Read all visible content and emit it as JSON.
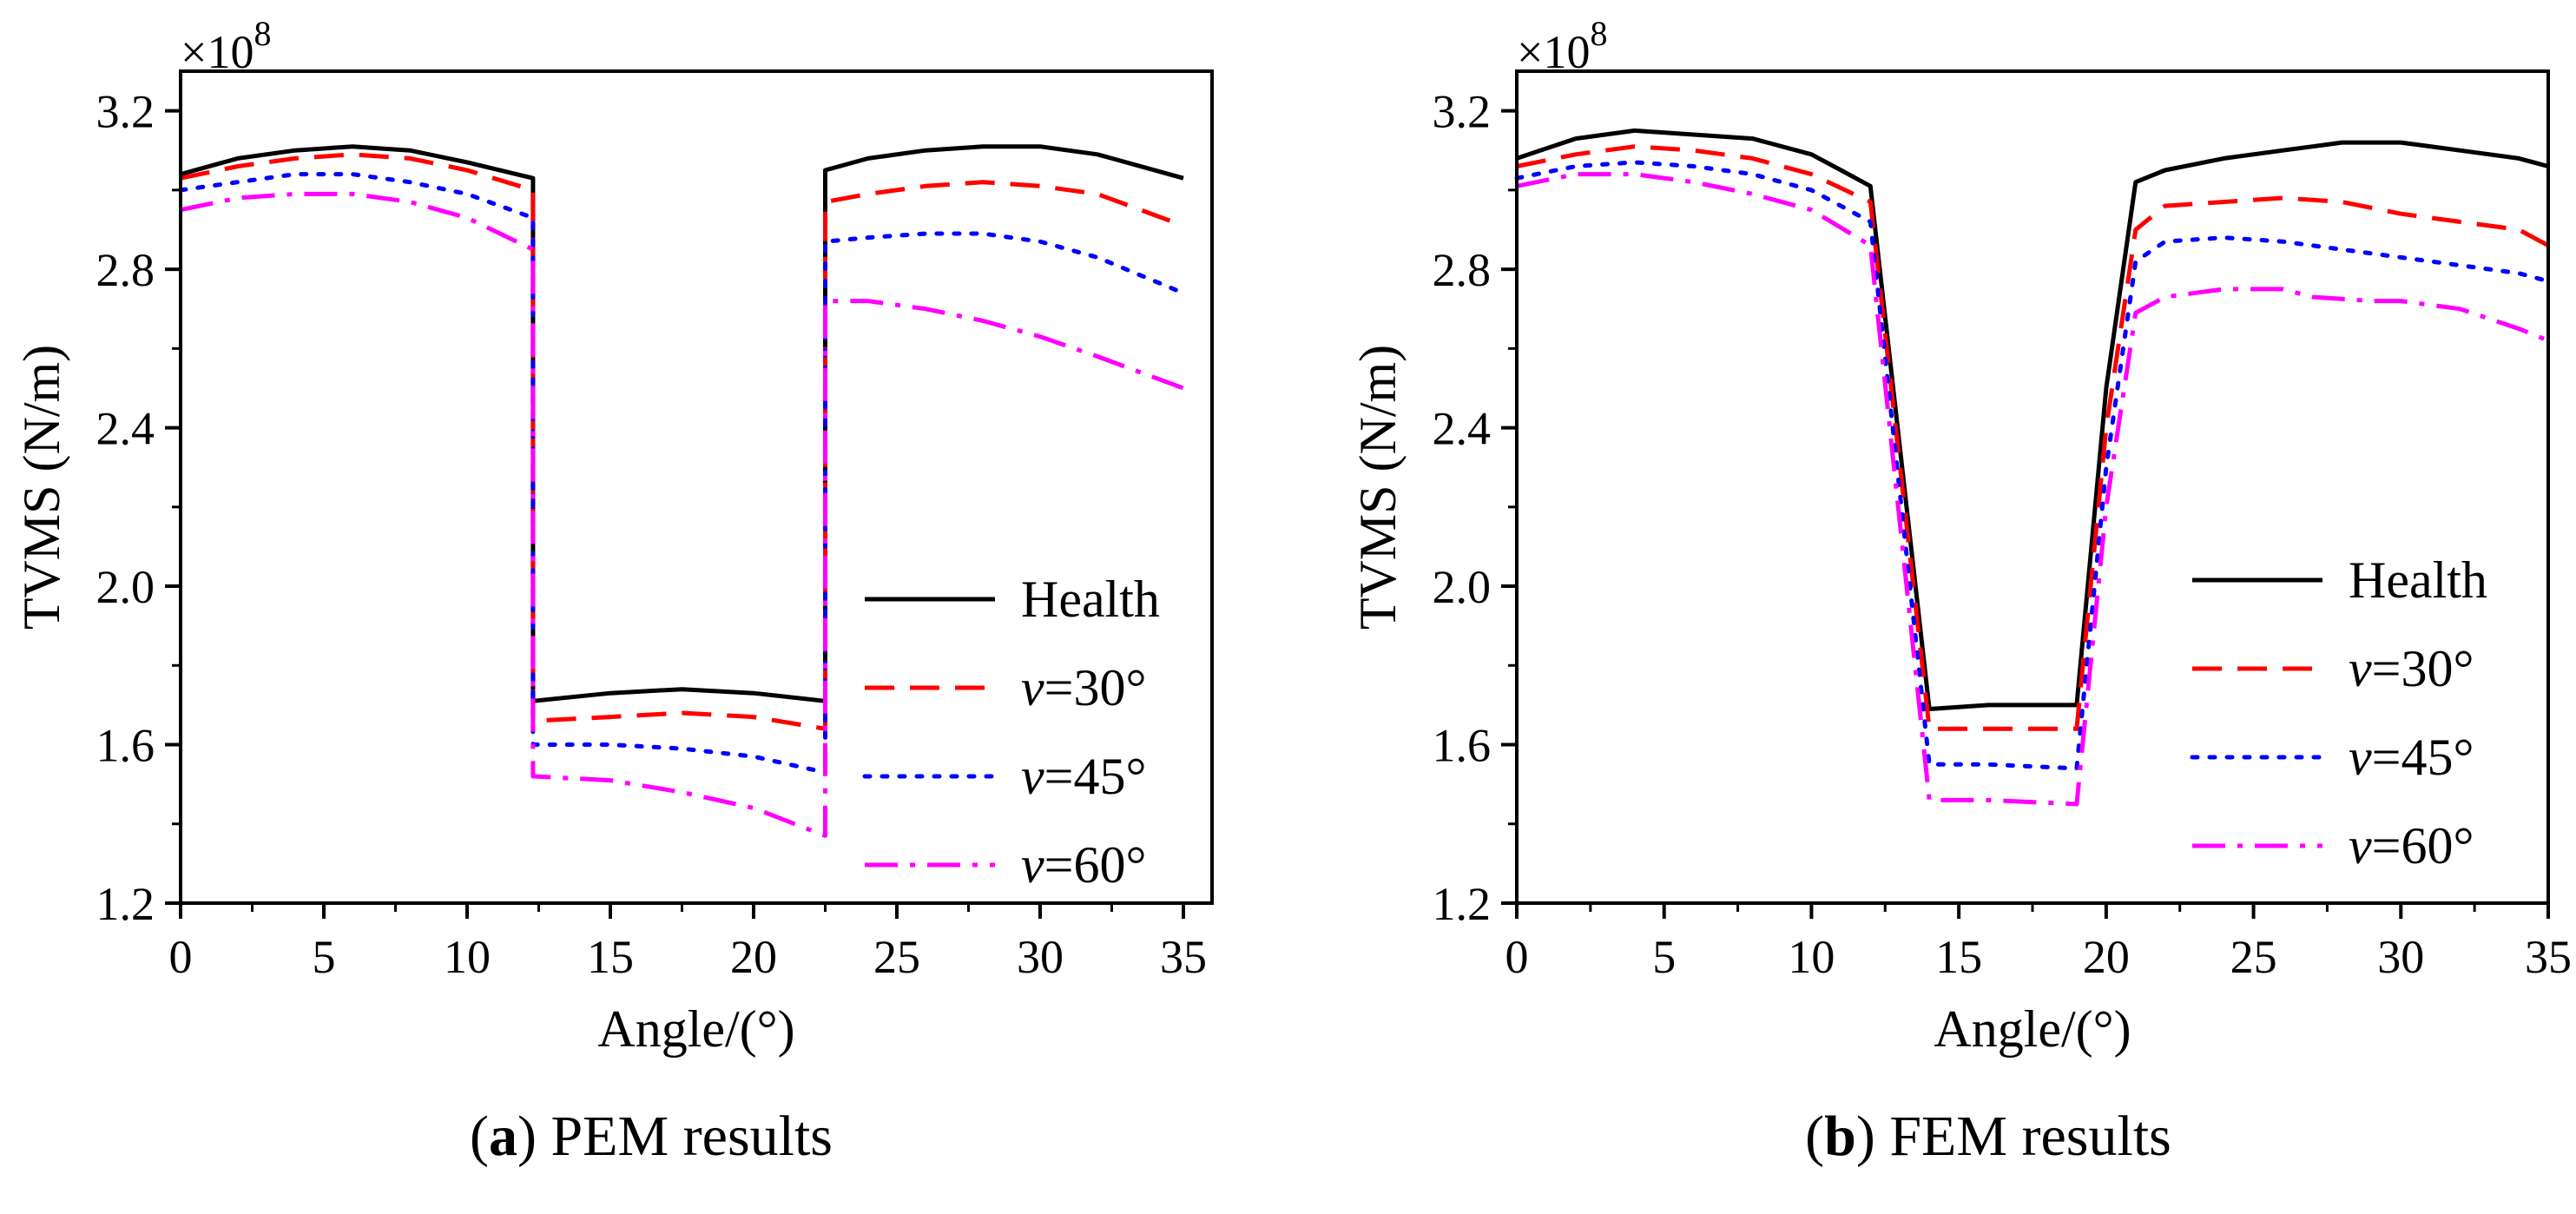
{
  "chart_data": [
    {
      "type": "line",
      "id": "a",
      "caption_letter": "a",
      "caption_text": "PEM results",
      "xlabel": "Angle/(°)",
      "ylabel": "TVMS (N/m)",
      "y_multiplier": "×10",
      "y_exponent": "8",
      "xlim": [
        0,
        36
      ],
      "ylim": [
        1.2,
        3.3
      ],
      "xticks": [
        0,
        5,
        10,
        15,
        20,
        25,
        30,
        35
      ],
      "xtick_labels": [
        "0",
        "5",
        "10",
        "15",
        "20",
        "25",
        "30",
        "35"
      ],
      "yticks": [
        1.2,
        1.6,
        2.0,
        2.4,
        2.8,
        3.2
      ],
      "ytick_labels": [
        "1.2",
        "1.6",
        "2.0",
        "2.4",
        "2.8",
        "3.2"
      ],
      "legend_position": "lower-right",
      "series": [
        {
          "name": "Health",
          "label_prefix": "",
          "label_value": "Health",
          "color": "#000000",
          "dash": "solid",
          "points": [
            [
              0,
              3.04
            ],
            [
              2,
              3.08
            ],
            [
              4,
              3.1
            ],
            [
              6,
              3.11
            ],
            [
              8,
              3.1
            ],
            [
              10,
              3.07
            ],
            [
              12.3,
              3.03
            ],
            [
              12.3,
              1.71
            ],
            [
              15,
              1.73
            ],
            [
              17.5,
              1.74
            ],
            [
              20,
              1.73
            ],
            [
              22.5,
              1.71
            ],
            [
              22.5,
              3.05
            ],
            [
              24,
              3.08
            ],
            [
              26,
              3.1
            ],
            [
              28,
              3.11
            ],
            [
              30,
              3.11
            ],
            [
              32,
              3.09
            ],
            [
              35,
              3.03
            ]
          ]
        },
        {
          "name": "v=30°",
          "label_prefix": "v",
          "label_value": "=30°",
          "color": "#ff0000",
          "dash": "dashed",
          "points": [
            [
              0,
              3.03
            ],
            [
              2,
              3.06
            ],
            [
              4,
              3.08
            ],
            [
              6,
              3.09
            ],
            [
              8,
              3.08
            ],
            [
              10,
              3.05
            ],
            [
              12.3,
              3.0
            ],
            [
              12.3,
              1.66
            ],
            [
              15,
              1.67
            ],
            [
              17.5,
              1.68
            ],
            [
              20,
              1.67
            ],
            [
              22.5,
              1.64
            ],
            [
              22.5,
              2.97
            ],
            [
              24,
              2.99
            ],
            [
              26,
              3.01
            ],
            [
              28,
              3.02
            ],
            [
              30,
              3.01
            ],
            [
              32,
              2.99
            ],
            [
              35,
              2.91
            ]
          ]
        },
        {
          "name": "v=45°",
          "label_prefix": "v",
          "label_value": "=45°",
          "color": "#0000ff",
          "dash": "dotted",
          "points": [
            [
              0,
              3.0
            ],
            [
              2,
              3.02
            ],
            [
              4,
              3.04
            ],
            [
              6,
              3.04
            ],
            [
              8,
              3.02
            ],
            [
              10,
              2.99
            ],
            [
              12.3,
              2.93
            ],
            [
              12.3,
              1.6
            ],
            [
              15,
              1.6
            ],
            [
              17.5,
              1.59
            ],
            [
              20,
              1.57
            ],
            [
              22.5,
              1.53
            ],
            [
              22.5,
              2.87
            ],
            [
              24,
              2.88
            ],
            [
              26,
              2.89
            ],
            [
              28,
              2.89
            ],
            [
              30,
              2.87
            ],
            [
              32,
              2.83
            ],
            [
              35,
              2.74
            ]
          ]
        },
        {
          "name": "v=60°",
          "label_prefix": "v",
          "label_value": "=60°",
          "color": "#ff00ff",
          "dash": "dashdot",
          "points": [
            [
              0,
              2.95
            ],
            [
              2,
              2.98
            ],
            [
              4,
              2.99
            ],
            [
              6,
              2.99
            ],
            [
              8,
              2.97
            ],
            [
              10,
              2.93
            ],
            [
              12.3,
              2.85
            ],
            [
              12.3,
              1.52
            ],
            [
              15,
              1.51
            ],
            [
              17.5,
              1.48
            ],
            [
              20,
              1.44
            ],
            [
              22.5,
              1.37
            ],
            [
              22.5,
              2.72
            ],
            [
              24,
              2.72
            ],
            [
              26,
              2.7
            ],
            [
              28,
              2.67
            ],
            [
              30,
              2.63
            ],
            [
              32,
              2.58
            ],
            [
              35,
              2.5
            ]
          ]
        }
      ]
    },
    {
      "type": "line",
      "id": "b",
      "caption_letter": "b",
      "caption_text": "FEM results",
      "xlabel": "Angle/(°)",
      "ylabel": "TVMS (N/m)",
      "y_multiplier": "×10",
      "y_exponent": "8",
      "xlim": [
        0,
        35
      ],
      "ylim": [
        1.2,
        3.3
      ],
      "xticks": [
        0,
        5,
        10,
        15,
        20,
        25,
        30,
        35
      ],
      "xtick_labels": [
        "0",
        "5",
        "10",
        "15",
        "20",
        "25",
        "30",
        "35"
      ],
      "yticks": [
        1.2,
        1.6,
        2.0,
        2.4,
        2.8,
        3.2
      ],
      "ytick_labels": [
        "1.2",
        "1.6",
        "2.0",
        "2.4",
        "2.8",
        "3.2"
      ],
      "legend_position": "lower-right",
      "series": [
        {
          "name": "Health",
          "label_prefix": "",
          "label_value": "Health",
          "color": "#000000",
          "dash": "solid",
          "points": [
            [
              0,
              3.08
            ],
            [
              2,
              3.13
            ],
            [
              4,
              3.15
            ],
            [
              6,
              3.14
            ],
            [
              8,
              3.13
            ],
            [
              10,
              3.09
            ],
            [
              11,
              3.05
            ],
            [
              12,
              3.01
            ],
            [
              14,
              1.69
            ],
            [
              16,
              1.7
            ],
            [
              17,
              1.7
            ],
            [
              19,
              1.7
            ],
            [
              20,
              2.5
            ],
            [
              21,
              3.02
            ],
            [
              22,
              3.05
            ],
            [
              24,
              3.08
            ],
            [
              26,
              3.1
            ],
            [
              27,
              3.11
            ],
            [
              28,
              3.12
            ],
            [
              30,
              3.12
            ],
            [
              32,
              3.1
            ],
            [
              34,
              3.08
            ],
            [
              35,
              3.06
            ]
          ]
        },
        {
          "name": "v=30°",
          "label_prefix": "v",
          "label_value": "=30°",
          "color": "#ff0000",
          "dash": "dashed",
          "points": [
            [
              0,
              3.06
            ],
            [
              2,
              3.09
            ],
            [
              4,
              3.11
            ],
            [
              6,
              3.1
            ],
            [
              8,
              3.08
            ],
            [
              10,
              3.04
            ],
            [
              12,
              2.97
            ],
            [
              14,
              1.64
            ],
            [
              16,
              1.64
            ],
            [
              19,
              1.64
            ],
            [
              20,
              2.4
            ],
            [
              21,
              2.9
            ],
            [
              22,
              2.96
            ],
            [
              24,
              2.97
            ],
            [
              26,
              2.98
            ],
            [
              28,
              2.97
            ],
            [
              30,
              2.94
            ],
            [
              32,
              2.92
            ],
            [
              34,
              2.9
            ],
            [
              35,
              2.86
            ]
          ]
        },
        {
          "name": "v=45°",
          "label_prefix": "v",
          "label_value": "=45°",
          "color": "#0000ff",
          "dash": "dotted",
          "points": [
            [
              0,
              3.03
            ],
            [
              2,
              3.06
            ],
            [
              4,
              3.07
            ],
            [
              6,
              3.06
            ],
            [
              8,
              3.04
            ],
            [
              10,
              3.0
            ],
            [
              12,
              2.92
            ],
            [
              14,
              1.55
            ],
            [
              16,
              1.55
            ],
            [
              19,
              1.54
            ],
            [
              20,
              2.3
            ],
            [
              21,
              2.82
            ],
            [
              22,
              2.87
            ],
            [
              24,
              2.88
            ],
            [
              26,
              2.87
            ],
            [
              28,
              2.85
            ],
            [
              30,
              2.83
            ],
            [
              32,
              2.81
            ],
            [
              34,
              2.79
            ],
            [
              35,
              2.77
            ]
          ]
        },
        {
          "name": "v=60°",
          "label_prefix": "v",
          "label_value": "=60°",
          "color": "#ff00ff",
          "dash": "dashdot",
          "points": [
            [
              0,
              3.01
            ],
            [
              2,
              3.04
            ],
            [
              4,
              3.04
            ],
            [
              6,
              3.02
            ],
            [
              8,
              2.99
            ],
            [
              10,
              2.95
            ],
            [
              12,
              2.86
            ],
            [
              14,
              1.46
            ],
            [
              16,
              1.46
            ],
            [
              19,
              1.45
            ],
            [
              20,
              2.2
            ],
            [
              21,
              2.69
            ],
            [
              22,
              2.73
            ],
            [
              24,
              2.75
            ],
            [
              26,
              2.75
            ],
            [
              27,
              2.73
            ],
            [
              29,
              2.72
            ],
            [
              30,
              2.72
            ],
            [
              32,
              2.7
            ],
            [
              34,
              2.65
            ],
            [
              35,
              2.62
            ]
          ]
        }
      ]
    }
  ]
}
